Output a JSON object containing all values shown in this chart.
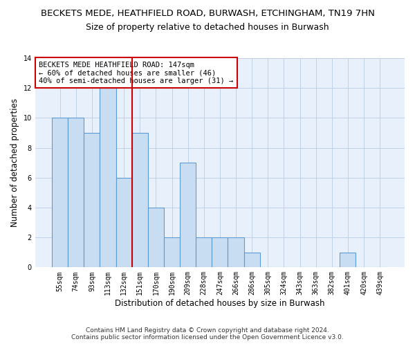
{
  "title": "BECKETS MEDE, HEATHFIELD ROAD, BURWASH, ETCHINGHAM, TN19 7HN",
  "subtitle": "Size of property relative to detached houses in Burwash",
  "xlabel": "Distribution of detached houses by size in Burwash",
  "ylabel": "Number of detached properties",
  "categories": [
    "55sqm",
    "74sqm",
    "93sqm",
    "113sqm",
    "132sqm",
    "151sqm",
    "170sqm",
    "190sqm",
    "209sqm",
    "228sqm",
    "247sqm",
    "266sqm",
    "286sqm",
    "305sqm",
    "324sqm",
    "343sqm",
    "363sqm",
    "382sqm",
    "401sqm",
    "420sqm",
    "439sqm"
  ],
  "values": [
    10,
    10,
    9,
    12,
    6,
    9,
    4,
    2,
    7,
    2,
    2,
    2,
    1,
    0,
    0,
    0,
    0,
    0,
    1,
    0,
    0
  ],
  "bar_color": "#c8ddf2",
  "bar_edge_color": "#5b9bd5",
  "vline_x": 4.5,
  "vline_color": "#cc0000",
  "annotation_text": "BECKETS MEDE HEATHFIELD ROAD: 147sqm\n← 60% of detached houses are smaller (46)\n40% of semi-detached houses are larger (31) →",
  "annotation_box_color": "#ffffff",
  "annotation_box_edge": "#cc0000",
  "ylim": [
    0,
    14
  ],
  "yticks": [
    0,
    2,
    4,
    6,
    8,
    10,
    12,
    14
  ],
  "grid_color": "#c0d0e8",
  "background_color": "#e8f1fb",
  "footer": "Contains HM Land Registry data © Crown copyright and database right 2024.\nContains public sector information licensed under the Open Government Licence v3.0.",
  "title_fontsize": 9.5,
  "subtitle_fontsize": 9,
  "xlabel_fontsize": 8.5,
  "ylabel_fontsize": 8.5,
  "tick_fontsize": 7,
  "annotation_fontsize": 7.5,
  "footer_fontsize": 6.5
}
